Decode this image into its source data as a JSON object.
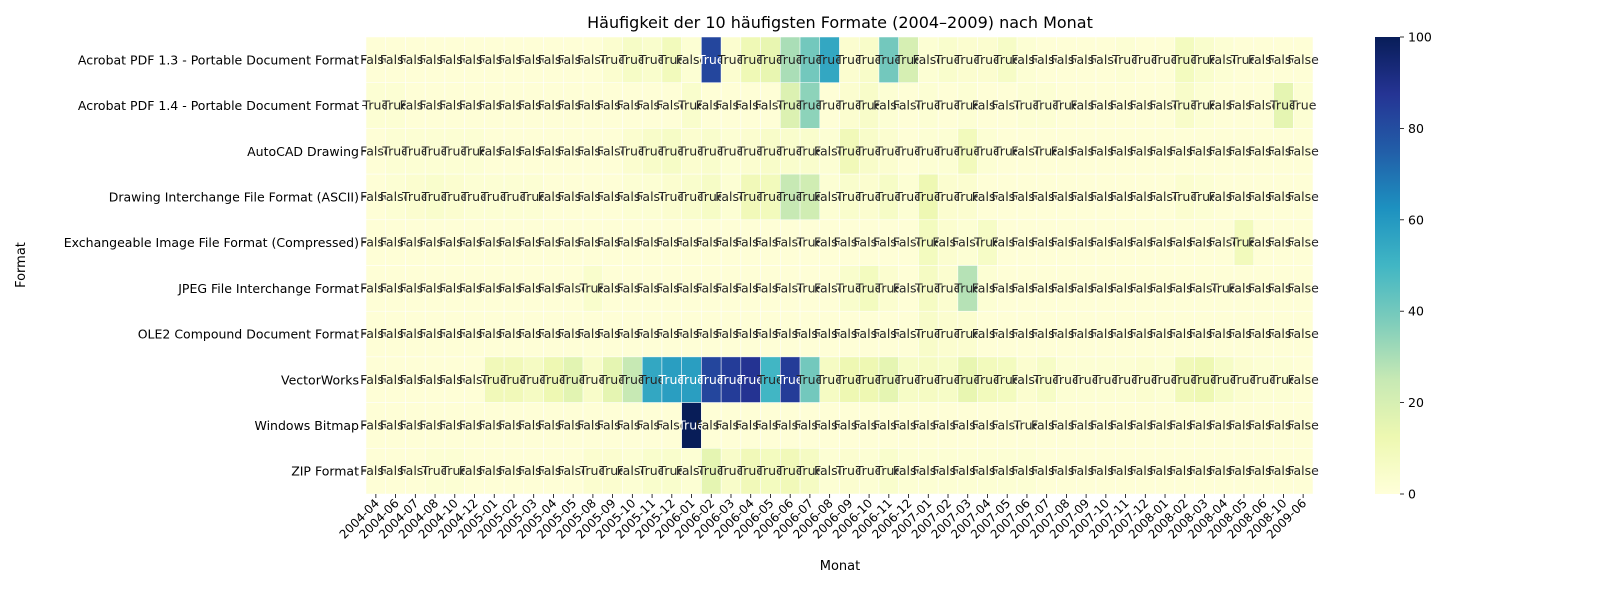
{
  "chart_data": {
    "type": "heatmap",
    "title": "Häufigkeit der 10 häufigsten Formate (2004–2009) nach Monat",
    "xlabel": "Monat",
    "ylabel": "Format",
    "colormap": "YlGnBu",
    "colorbar": {
      "min": 0,
      "max": 100,
      "ticks": [
        "0",
        "20",
        "40",
        "60",
        "80",
        "100"
      ]
    },
    "rows": [
      "Acrobat PDF 1.3 - Portable Document Format",
      "Acrobat PDF 1.4 - Portable Document Format",
      "AutoCAD Drawing",
      "Drawing Interchange File Format (ASCII)",
      "Exchangeable Image File Format (Compressed)",
      "JPEG File Interchange Format",
      "OLE2 Compound Document Format",
      "VectorWorks",
      "Windows Bitmap",
      "ZIP Format"
    ],
    "columns": [
      "2004-04",
      "2004-06",
      "2004-07",
      "2004-08",
      "2004-10",
      "2004-12",
      "2005-01",
      "2005-02",
      "2005-03",
      "2005-04",
      "2005-05",
      "2005-08",
      "2005-09",
      "2005-10",
      "2005-11",
      "2005-12",
      "2006-01",
      "2006-02",
      "2006-03",
      "2006-04",
      "2006-05",
      "2006-06",
      "2006-07",
      "2006-08",
      "2006-09",
      "2006-10",
      "2006-11",
      "2006-12",
      "2007-01",
      "2007-02",
      "2007-03",
      "2007-04",
      "2007-05",
      "2007-06",
      "2007-07",
      "2007-08",
      "2007-09",
      "2007-10",
      "2007-11",
      "2007-12",
      "2008-01",
      "2008-02",
      "2008-03",
      "2008-04",
      "2008-05",
      "2008-06",
      "2008-10",
      "2009-06"
    ],
    "values": [
      [
        1,
        1,
        1,
        1,
        1,
        1,
        1,
        1,
        1,
        1,
        1,
        1,
        3,
        6,
        4,
        9,
        2,
        82,
        3,
        11,
        14,
        30,
        40,
        55,
        3,
        5,
        40,
        20,
        2,
        4,
        3,
        3,
        6,
        2,
        1,
        1,
        1,
        1,
        2,
        1,
        1,
        8,
        4,
        2,
        1,
        1,
        1,
        1
      ],
      [
        2,
        2,
        1,
        1,
        1,
        1,
        1,
        1,
        1,
        1,
        1,
        1,
        1,
        1,
        1,
        1,
        4,
        1,
        1,
        1,
        1,
        18,
        35,
        1,
        3,
        5,
        2,
        1,
        2,
        1,
        2,
        1,
        1,
        2,
        2,
        1,
        1,
        1,
        1,
        1,
        1,
        5,
        2,
        1,
        1,
        1,
        15,
        2
      ],
      [
        1,
        2,
        2,
        2,
        2,
        2,
        1,
        1,
        1,
        1,
        1,
        1,
        1,
        3,
        5,
        6,
        3,
        4,
        2,
        3,
        5,
        4,
        4,
        2,
        10,
        5,
        3,
        1,
        2,
        2,
        9,
        2,
        1,
        1,
        1,
        1,
        1,
        1,
        1,
        1,
        1,
        1,
        1,
        1,
        1,
        1,
        1,
        1
      ],
      [
        1,
        2,
        3,
        4,
        3,
        2,
        2,
        2,
        2,
        1,
        1,
        1,
        1,
        2,
        2,
        3,
        4,
        6,
        2,
        10,
        9,
        25,
        22,
        2,
        4,
        3,
        6,
        2,
        12,
        3,
        3,
        1,
        1,
        1,
        1,
        1,
        1,
        1,
        1,
        1,
        1,
        3,
        2,
        1,
        1,
        1,
        1,
        1
      ],
      [
        1,
        1,
        1,
        1,
        1,
        1,
        1,
        1,
        1,
        1,
        1,
        1,
        1,
        1,
        1,
        1,
        1,
        1,
        1,
        1,
        1,
        1,
        1,
        1,
        1,
        1,
        1,
        1,
        8,
        3,
        2,
        6,
        1,
        1,
        1,
        1,
        1,
        1,
        1,
        1,
        1,
        1,
        1,
        1,
        9,
        1,
        1,
        1
      ],
      [
        1,
        1,
        1,
        1,
        1,
        1,
        1,
        1,
        1,
        1,
        1,
        4,
        1,
        1,
        1,
        1,
        1,
        1,
        1,
        1,
        1,
        1,
        1,
        1,
        4,
        8,
        3,
        1,
        7,
        3,
        28,
        2,
        1,
        1,
        1,
        1,
        1,
        1,
        1,
        1,
        1,
        1,
        1,
        1,
        1,
        1,
        1,
        1
      ],
      [
        1,
        1,
        1,
        1,
        1,
        1,
        1,
        1,
        1,
        1,
        1,
        1,
        1,
        1,
        1,
        1,
        1,
        1,
        1,
        1,
        1,
        1,
        1,
        1,
        1,
        1,
        1,
        1,
        5,
        3,
        3,
        1,
        1,
        1,
        1,
        1,
        1,
        1,
        1,
        1,
        1,
        1,
        1,
        1,
        1,
        1,
        1,
        1
      ],
      [
        1,
        1,
        1,
        1,
        1,
        1,
        10,
        10,
        7,
        12,
        16,
        5,
        15,
        25,
        55,
        58,
        58,
        82,
        85,
        88,
        50,
        85,
        40,
        7,
        12,
        12,
        15,
        6,
        7,
        6,
        14,
        9,
        8,
        3,
        6,
        2,
        2,
        2,
        2,
        3,
        2,
        10,
        12,
        6,
        3,
        2,
        2,
        1
      ],
      [
        1,
        1,
        1,
        1,
        1,
        1,
        1,
        1,
        1,
        1,
        1,
        1,
        1,
        1,
        1,
        1,
        100,
        1,
        1,
        1,
        1,
        1,
        1,
        1,
        1,
        1,
        1,
        1,
        1,
        1,
        1,
        1,
        1,
        1,
        1,
        1,
        1,
        1,
        1,
        1,
        1,
        1,
        1,
        1,
        1,
        1,
        1,
        1
      ],
      [
        1,
        1,
        1,
        2,
        2,
        1,
        1,
        1,
        1,
        1,
        1,
        3,
        3,
        2,
        4,
        4,
        2,
        15,
        5,
        10,
        8,
        10,
        7,
        2,
        3,
        2,
        4,
        2,
        2,
        2,
        2,
        2,
        2,
        2,
        1,
        1,
        1,
        1,
        1,
        1,
        1,
        1,
        1,
        1,
        1,
        1,
        1,
        1
      ]
    ],
    "cell_labels": [
      [
        "False",
        "False",
        "False",
        "False",
        "False",
        "False",
        "False",
        "False",
        "False",
        "False",
        "False",
        "False",
        "True",
        "True",
        "True",
        "True",
        "False",
        "True",
        "True",
        "True",
        "True",
        "True",
        "True",
        "True",
        "True",
        "True",
        "True",
        "True",
        "False",
        "True",
        "True",
        "True",
        "True",
        "False",
        "False",
        "False",
        "False",
        "False",
        "True",
        "True",
        "True",
        "True",
        "True",
        "False",
        "True",
        "False",
        "False",
        "False"
      ],
      [
        "True",
        "True",
        "False",
        "False",
        "False",
        "False",
        "False",
        "False",
        "False",
        "False",
        "False",
        "False",
        "False",
        "False",
        "False",
        "False",
        "True",
        "False",
        "False",
        "False",
        "False",
        "True",
        "True",
        "True",
        "True",
        "True",
        "False",
        "False",
        "True",
        "True",
        "True",
        "False",
        "False",
        "True",
        "True",
        "True",
        "False",
        "False",
        "False",
        "False",
        "False",
        "True",
        "True",
        "False",
        "False",
        "False",
        "True",
        "True"
      ],
      [
        "False",
        "True",
        "True",
        "True",
        "True",
        "True",
        "False",
        "False",
        "False",
        "False",
        "False",
        "False",
        "False",
        "True",
        "True",
        "True",
        "True",
        "True",
        "True",
        "True",
        "True",
        "True",
        "True",
        "False",
        "True",
        "True",
        "True",
        "True",
        "True",
        "True",
        "True",
        "True",
        "True",
        "False",
        "True",
        "False",
        "False",
        "False",
        "False",
        "False",
        "False",
        "False",
        "False",
        "False",
        "False",
        "False",
        "False",
        "False"
      ],
      [
        "False",
        "False",
        "True",
        "True",
        "True",
        "True",
        "True",
        "True",
        "True",
        "False",
        "False",
        "False",
        "False",
        "False",
        "False",
        "True",
        "True",
        "True",
        "False",
        "True",
        "True",
        "True",
        "True",
        "False",
        "True",
        "True",
        "True",
        "True",
        "True",
        "True",
        "True",
        "False",
        "False",
        "False",
        "False",
        "False",
        "False",
        "False",
        "False",
        "False",
        "False",
        "True",
        "True",
        "False",
        "False",
        "False",
        "False",
        "False"
      ],
      [
        "False",
        "False",
        "False",
        "False",
        "False",
        "False",
        "False",
        "False",
        "False",
        "False",
        "False",
        "False",
        "False",
        "False",
        "False",
        "False",
        "False",
        "False",
        "False",
        "False",
        "False",
        "False",
        "True",
        "False",
        "False",
        "False",
        "False",
        "False",
        "True",
        "False",
        "False",
        "True",
        "False",
        "False",
        "False",
        "False",
        "False",
        "False",
        "False",
        "False",
        "False",
        "False",
        "False",
        "False",
        "True",
        "False",
        "False",
        "False"
      ],
      [
        "False",
        "False",
        "False",
        "False",
        "False",
        "False",
        "False",
        "False",
        "False",
        "False",
        "False",
        "True",
        "False",
        "False",
        "False",
        "False",
        "False",
        "False",
        "False",
        "False",
        "False",
        "False",
        "True",
        "False",
        "True",
        "True",
        "True",
        "False",
        "True",
        "True",
        "True",
        "False",
        "False",
        "False",
        "False",
        "False",
        "False",
        "False",
        "False",
        "False",
        "False",
        "False",
        "False",
        "True",
        "False",
        "False",
        "False",
        "False"
      ],
      [
        "False",
        "False",
        "False",
        "False",
        "False",
        "False",
        "False",
        "False",
        "False",
        "False",
        "False",
        "False",
        "False",
        "False",
        "False",
        "False",
        "False",
        "False",
        "False",
        "False",
        "False",
        "False",
        "False",
        "False",
        "False",
        "False",
        "False",
        "False",
        "True",
        "True",
        "True",
        "False",
        "False",
        "False",
        "False",
        "False",
        "False",
        "False",
        "False",
        "False",
        "False",
        "False",
        "False",
        "False",
        "False",
        "False",
        "False",
        "False"
      ],
      [
        "False",
        "False",
        "False",
        "False",
        "False",
        "False",
        "True",
        "True",
        "True",
        "True",
        "True",
        "True",
        "True",
        "True",
        "True",
        "True",
        "True",
        "True",
        "True",
        "True",
        "True",
        "True",
        "True",
        "True",
        "True",
        "True",
        "True",
        "True",
        "True",
        "True",
        "True",
        "True",
        "True",
        "False",
        "True",
        "True",
        "True",
        "True",
        "True",
        "True",
        "True",
        "True",
        "True",
        "True",
        "True",
        "True",
        "True",
        "False"
      ],
      [
        "False",
        "False",
        "False",
        "False",
        "False",
        "False",
        "False",
        "False",
        "False",
        "False",
        "False",
        "False",
        "False",
        "False",
        "False",
        "False",
        "True",
        "False",
        "False",
        "False",
        "False",
        "False",
        "False",
        "False",
        "False",
        "False",
        "False",
        "False",
        "False",
        "False",
        "False",
        "False",
        "False",
        "True",
        "False",
        "False",
        "False",
        "False",
        "False",
        "False",
        "False",
        "False",
        "False",
        "False",
        "False",
        "False",
        "False",
        "False"
      ],
      [
        "False",
        "False",
        "False",
        "True",
        "True",
        "False",
        "False",
        "False",
        "False",
        "False",
        "False",
        "True",
        "True",
        "False",
        "True",
        "True",
        "False",
        "True",
        "True",
        "True",
        "True",
        "True",
        "True",
        "False",
        "True",
        "True",
        "True",
        "False",
        "False",
        "False",
        "False",
        "False",
        "False",
        "False",
        "False",
        "False",
        "False",
        "False",
        "False",
        "False",
        "False",
        "False",
        "False",
        "False",
        "False",
        "False",
        "False",
        "False"
      ]
    ]
  }
}
